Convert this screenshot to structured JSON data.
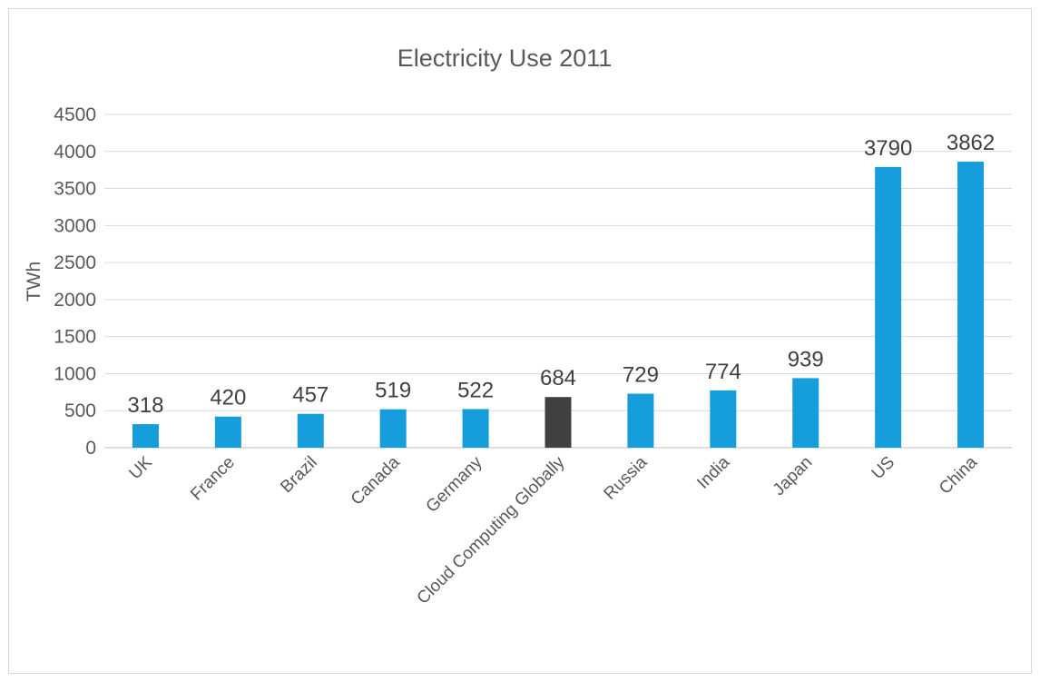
{
  "chart_data": {
    "type": "bar",
    "title": "Electricity Use 2011",
    "xlabel": "",
    "ylabel": "TWh",
    "ylim": [
      0,
      4500
    ],
    "yticks": [
      0,
      500,
      1000,
      1500,
      2000,
      2500,
      3000,
      3500,
      4000,
      4500
    ],
    "grid": true,
    "legend": "none",
    "categories": [
      "UK",
      "France",
      "Brazil",
      "Canada",
      "Germany",
      "Cloud Computing Globally",
      "Russia",
      "India",
      "Japan",
      "US",
      "China"
    ],
    "values": [
      318,
      420,
      457,
      519,
      522,
      684,
      729,
      774,
      939,
      3790,
      3862
    ],
    "colors": {
      "default_bar": "#169ddb",
      "highlight_bar": "#404040"
    },
    "highlight_category": "Cloud Computing Globally"
  }
}
